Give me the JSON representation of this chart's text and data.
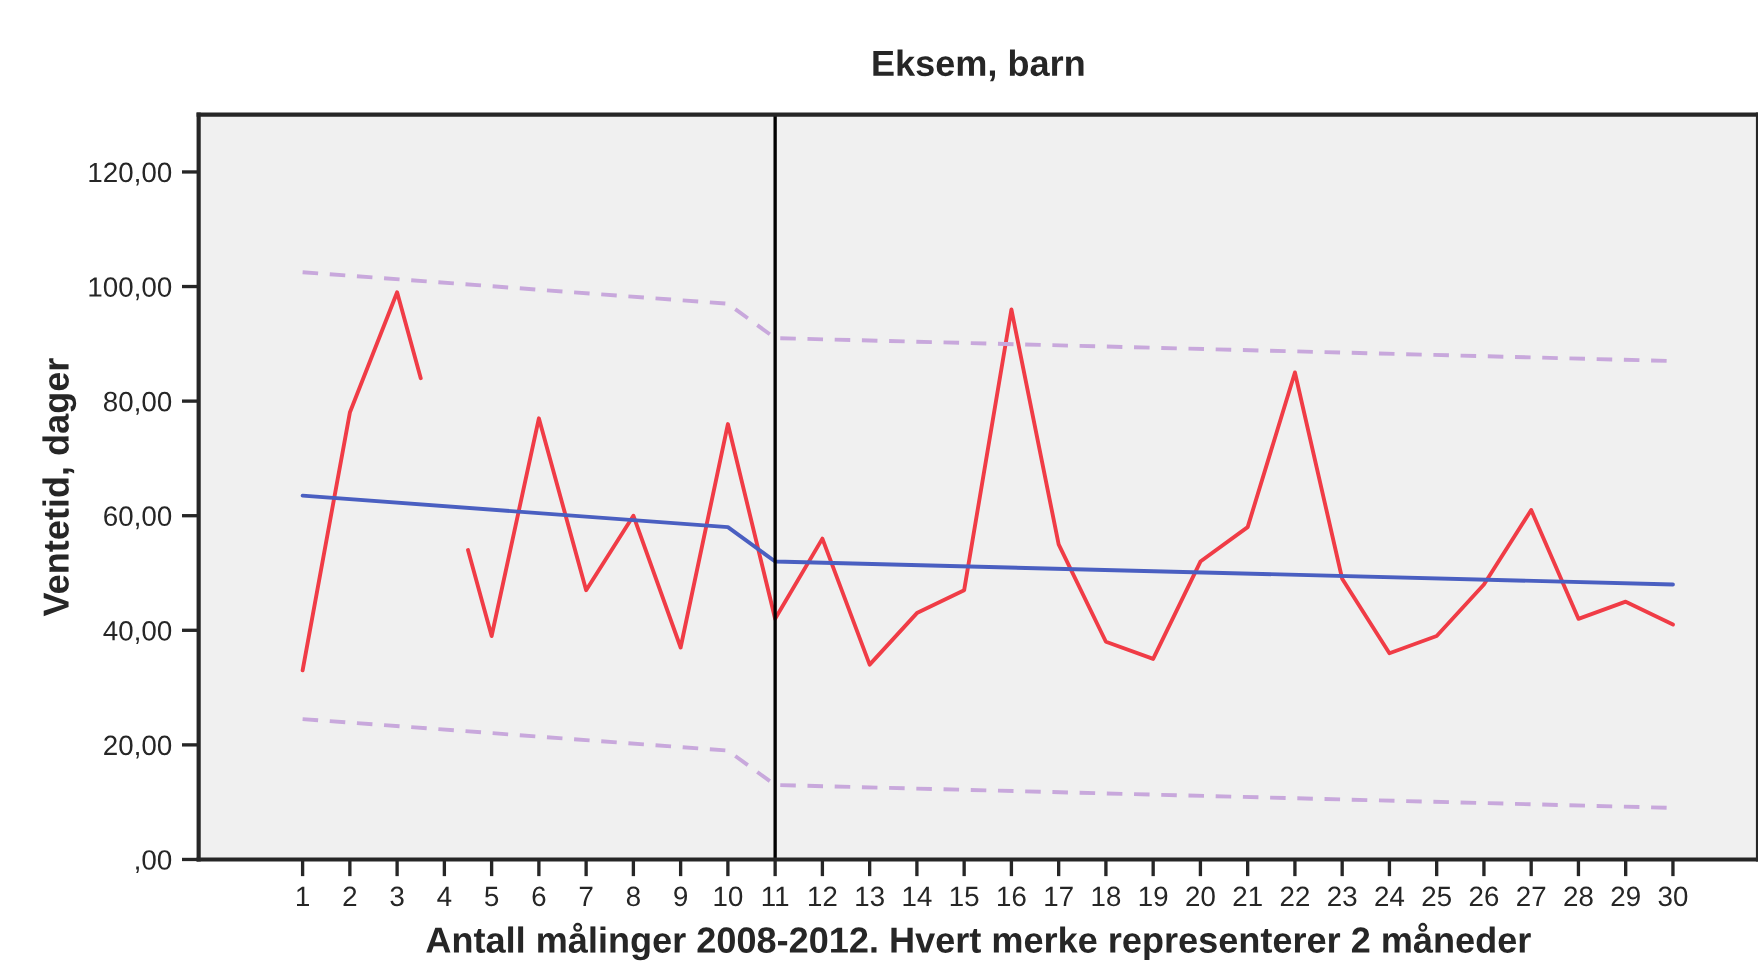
{
  "chart_data": {
    "type": "line",
    "title": "Eksem, barn",
    "xlabel": "Antall målinger 2008-2012. Hvert merke representerer 2 måneder",
    "ylabel": "Ventetid, dager",
    "series": [
      {
        "color": "#f03c46",
        "line_style": "solid",
        "x": [
          1,
          2,
          3,
          3.5,
          4,
          4.5,
          5,
          6,
          7,
          8,
          9,
          10,
          11,
          12,
          13,
          14,
          15,
          16,
          17,
          18,
          19,
          20,
          21,
          22,
          23,
          24,
          25,
          26,
          27,
          28,
          29,
          30
        ],
        "values": [
          33,
          78,
          99,
          84,
          null,
          54,
          39,
          77,
          47,
          60,
          37,
          76,
          42,
          56,
          34,
          43,
          47,
          96,
          55,
          38,
          35,
          52,
          58,
          85,
          49,
          36,
          39,
          48,
          61,
          42,
          45,
          41
        ]
      },
      {
        "color": "#4a5fc1",
        "line_style": "solid",
        "x": [
          1,
          10,
          11,
          30
        ],
        "values": [
          63.5,
          58,
          52,
          48
        ]
      },
      {
        "color": "#c8a8dc",
        "line_style": "dashed",
        "x": [
          1,
          10,
          11,
          30
        ],
        "values": [
          102.5,
          97,
          91,
          87
        ]
      },
      {
        "color": "#c8a8dc",
        "line_style": "dashed",
        "x": [
          1,
          10,
          11,
          30
        ],
        "values": [
          24.5,
          19,
          13,
          9
        ]
      }
    ],
    "ref_lines": [
      {
        "axis": "x",
        "value": 11,
        "color": "#000000",
        "line_style": "solid"
      }
    ],
    "xlim": [
      -1.2,
      31.8
    ],
    "ylim": [
      0,
      130
    ],
    "xticks": [
      1,
      2,
      3,
      4,
      5,
      6,
      7,
      8,
      9,
      10,
      11,
      12,
      13,
      14,
      15,
      16,
      17,
      18,
      19,
      20,
      21,
      22,
      23,
      24,
      25,
      26,
      27,
      28,
      29,
      30
    ],
    "yticks": [
      {
        "value": 0,
        "label": ",00"
      },
      {
        "value": 20,
        "label": "20,00"
      },
      {
        "value": 40,
        "label": "40,00"
      },
      {
        "value": 60,
        "label": "60,00"
      },
      {
        "value": 80,
        "label": "80,00"
      },
      {
        "value": 100,
        "label": "100,00"
      },
      {
        "value": 120,
        "label": "120,00"
      }
    ],
    "grid": false,
    "legend": false
  }
}
